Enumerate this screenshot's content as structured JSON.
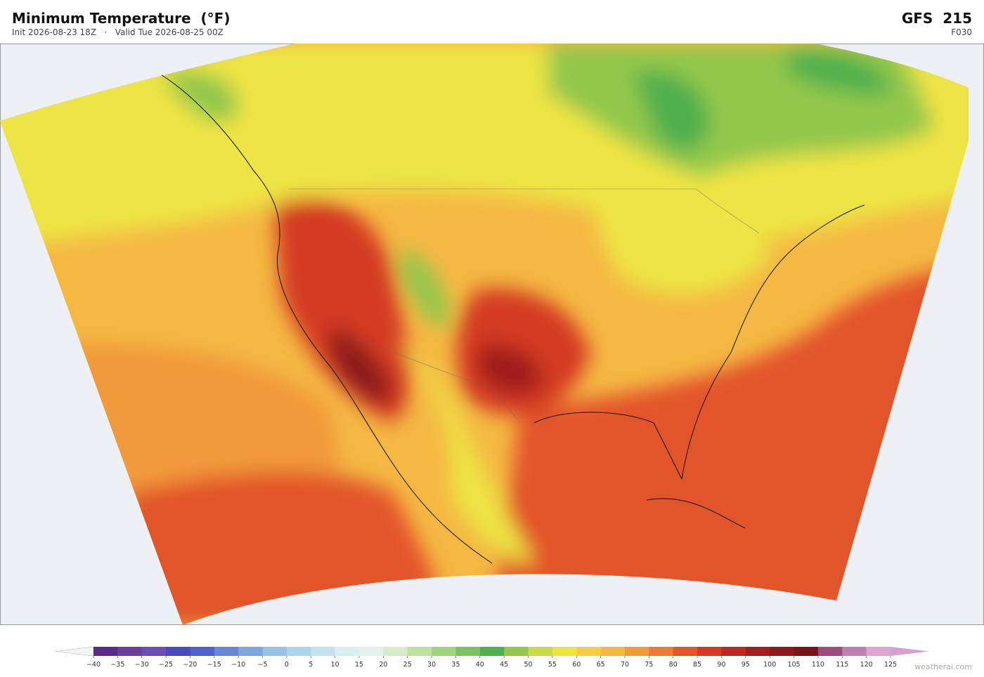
{
  "header": {
    "title": "Minimum Temperature  (°F)",
    "subtitle": "Init 2026-08-23 18Z   ·   Valid Tue 2026-08-25 00Z",
    "model": "GFS  215",
    "forecast_hour": "F030"
  },
  "colorbar": {
    "ticks": [
      {
        "value": -40,
        "label": "−40"
      },
      {
        "value": -35,
        "label": "−35"
      },
      {
        "value": -30,
        "label": "−30"
      },
      {
        "value": -25,
        "label": "−25"
      },
      {
        "value": -20,
        "label": "−20"
      },
      {
        "value": -15,
        "label": "−15"
      },
      {
        "value": -10,
        "label": "−10"
      },
      {
        "value": -5,
        "label": "−5"
      },
      0,
      5,
      10,
      15,
      20,
      25,
      30,
      35,
      40,
      45,
      50,
      55,
      60,
      65,
      70,
      75,
      80,
      85,
      90,
      95,
      100,
      105,
      110,
      115,
      120,
      125
    ],
    "colors": [
      "#5b2a8e",
      "#6a3fa0",
      "#6b4fb5",
      "#4a4bbf",
      "#4e62cc",
      "#6688d6",
      "#7fa6dc",
      "#98c2e4",
      "#acd4ec",
      "#c3e3f0",
      "#d9eff2",
      "#e4f4ec",
      "#d6edc8",
      "#bde3a0",
      "#9fd47e",
      "#79c364",
      "#4fb04e",
      "#93c74c",
      "#c8db4a",
      "#ede444",
      "#f4cd45",
      "#f5b843",
      "#f19a3a",
      "#ec7b33",
      "#e2542a",
      "#d43a24",
      "#bb2a22",
      "#a11f1f",
      "#8c1a1d",
      "#781419",
      "#9b4d7e",
      "#c27fb4",
      "#dca6d1"
    ],
    "under_color": "#f4f4f4",
    "over_color": "#d7a1cf"
  },
  "watermark": "weatherai.com"
}
